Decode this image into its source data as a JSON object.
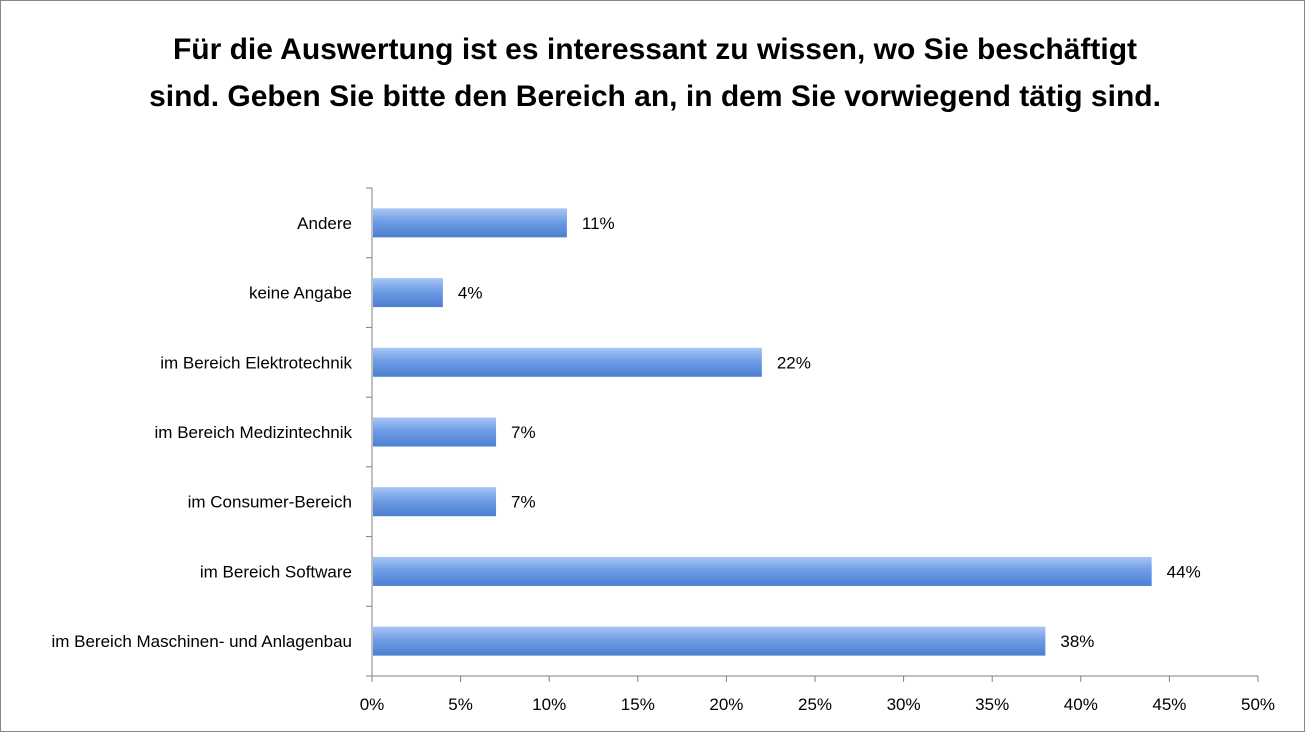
{
  "chart_data": {
    "type": "bar",
    "orientation": "horizontal",
    "title": "Für die Auswertung ist es interessant zu wissen, wo Sie beschäftigt sind. Geben Sie bitte den Bereich an, in dem Sie vorwiegend tätig sind.",
    "categories": [
      "Andere",
      "keine Angabe",
      "im Bereich Elektrotechnik",
      "im Bereich Medizintechnik",
      "im Consumer-Bereich",
      "im Bereich Software",
      "im Bereich Maschinen- und Anlagenbau"
    ],
    "values": [
      11,
      4,
      22,
      7,
      7,
      44,
      38
    ],
    "data_labels": [
      "11%",
      "4%",
      "22%",
      "7%",
      "7%",
      "44%",
      "38%"
    ],
    "xlim": [
      0,
      50
    ],
    "x_ticks": [
      0,
      5,
      10,
      15,
      20,
      25,
      30,
      35,
      40,
      45,
      50
    ],
    "x_tick_labels": [
      "0%",
      "5%",
      "10%",
      "15%",
      "20%",
      "25%",
      "30%",
      "35%",
      "40%",
      "45%",
      "50%"
    ],
    "bar_color": "#6f9de6",
    "bar_color_light": "#a9c6f5",
    "bar_color_dark": "#4d7fd0",
    "grid": false,
    "legend": "none",
    "xlabel": "",
    "ylabel": ""
  }
}
